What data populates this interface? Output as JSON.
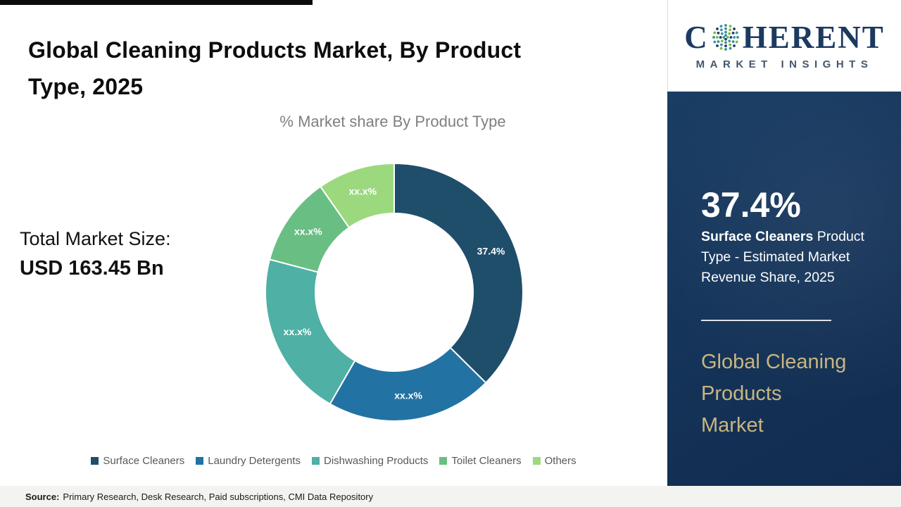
{
  "page": {
    "title": "Global Cleaning Products Market, By Product\nType, 2025",
    "chart_title": "% Market share By Product Type",
    "total_label": "Total Market Size:",
    "total_value": "USD 163.45 Bn",
    "source_label": "Source:",
    "source_text": "Primary Research, Desk Research, Paid subscriptions, CMI Data Repository"
  },
  "sidebar": {
    "brand_left": "C",
    "brand_right": "HERENT",
    "brand_subtitle": "MARKET INSIGHTS",
    "highlight_value": "37.4%",
    "highlight_bold": "Surface Cleaners",
    "highlight_text": "Product Type - Estimated Market Revenue Share, 2025",
    "footer_title": "Global Cleaning\nProducts\nMarket",
    "colors": {
      "background": "#16365c",
      "accent_text": "#c9b581"
    }
  },
  "chart_data": {
    "type": "pie",
    "subtype": "donut",
    "title": "% Market share By Product Type",
    "legend_position": "bottom",
    "label_color": "#ffffff",
    "segments": [
      {
        "label": "Surface Cleaners",
        "value": 37.4,
        "display": "37.4%",
        "color": "#1f4e6b"
      },
      {
        "label": "Laundry Detergents",
        "value": 20.9,
        "display": "xx.x%",
        "color": "#2273a3"
      },
      {
        "label": "Dishwashing Products",
        "value": 20.8,
        "display": "xx.x%",
        "color": "#4fb0a5"
      },
      {
        "label": "Toilet Cleaners",
        "value": 11.2,
        "display": "xx.x%",
        "color": "#69be83"
      },
      {
        "label": "Others",
        "value": 9.7,
        "display": "xx.x%",
        "color": "#9cd97e"
      }
    ]
  }
}
